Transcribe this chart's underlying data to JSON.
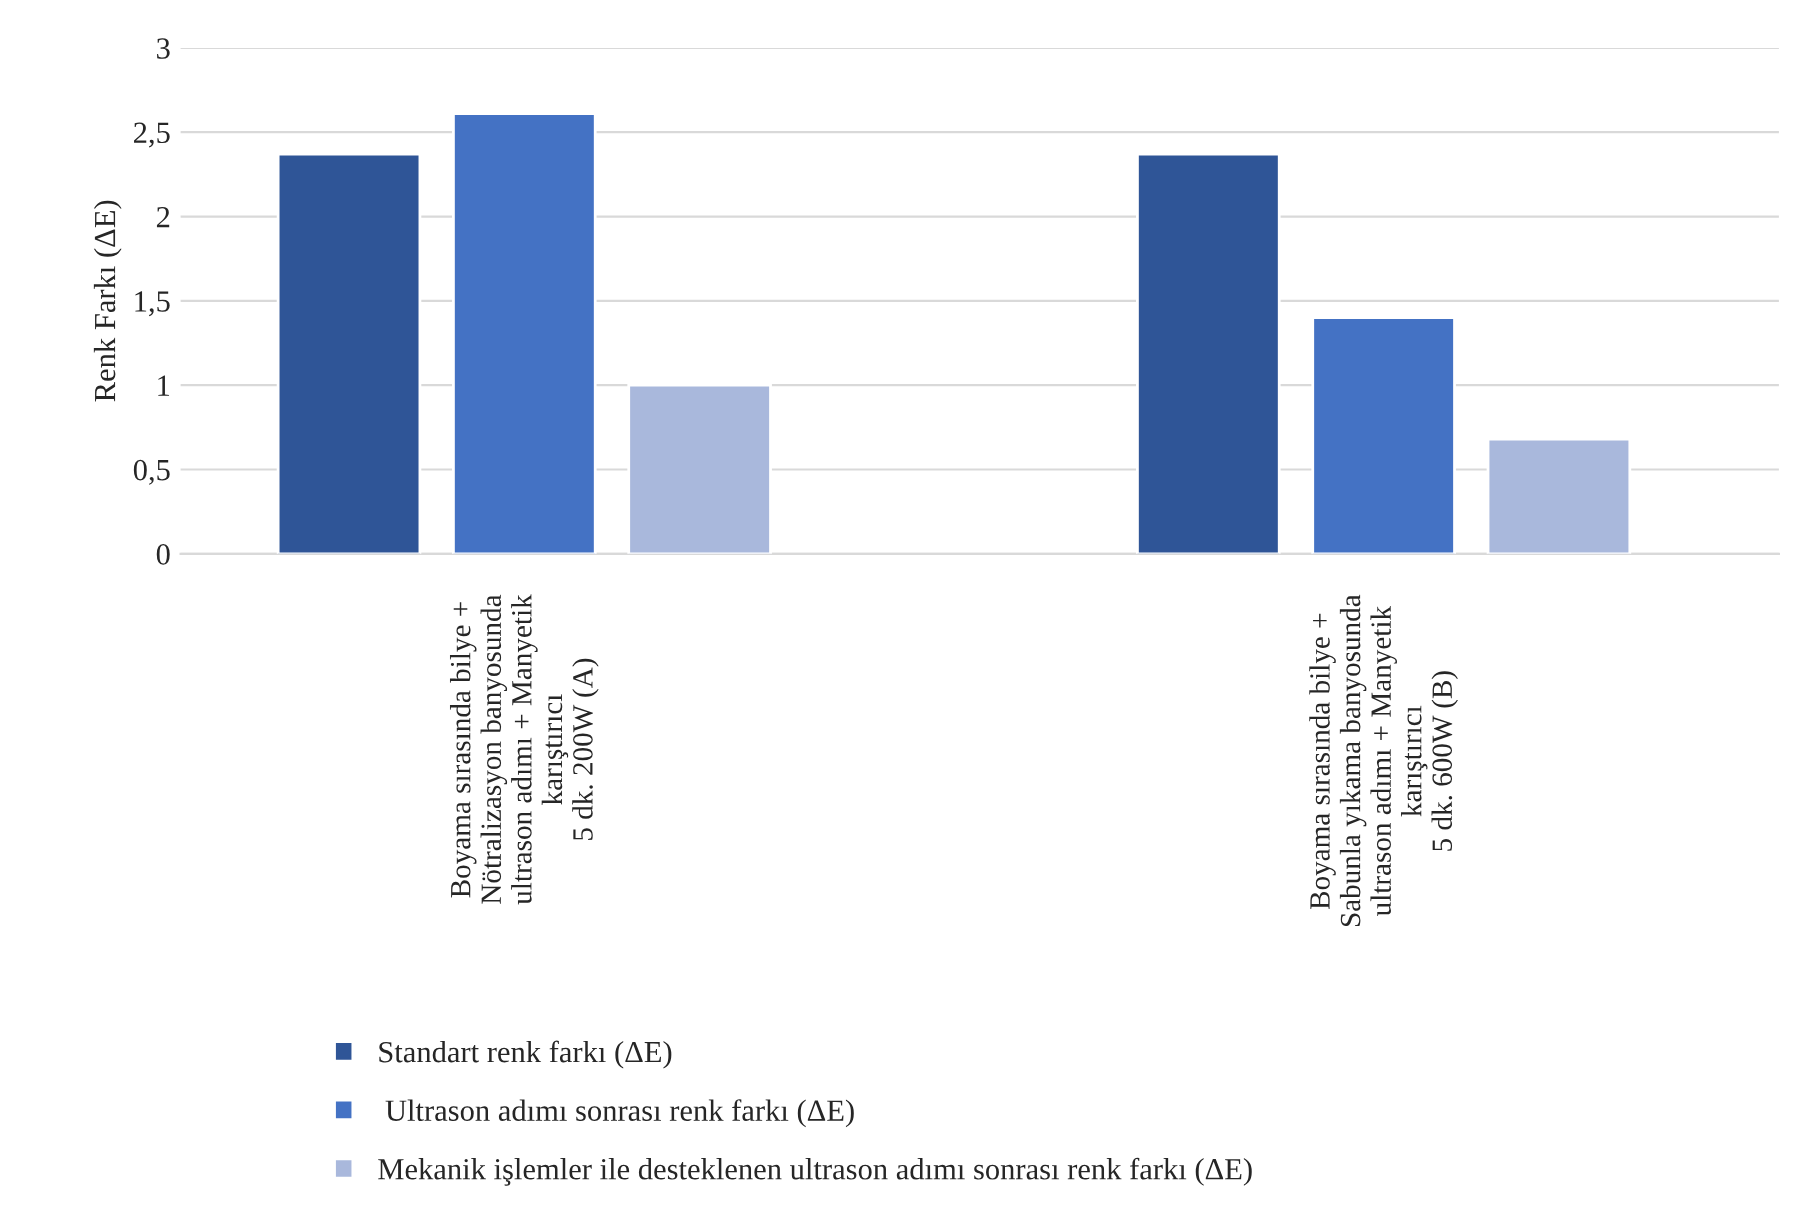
{
  "chart_data": {
    "type": "bar",
    "ylabel": "Renk Farkı (ΔE)",
    "categories": [
      "Boyama sırasında bilye +\nNötralizasyon banyosunda\nultrason adımı + Manyetik\nkarıştırıcı\n5 dk. 200W (A)",
      "Boyama sırasında bilye +\nSabunla yıkama banyosunda\nultrason adımı + Manyetik\nkarıştırıcı\n5 dk. 600W (B)"
    ],
    "series": [
      {
        "name": "Standart renk farkı (ΔE)",
        "color": "#2f5597",
        "values": [
          2.37,
          2.37
        ]
      },
      {
        "name": " Ultrason adımı sonrası renk farkı (ΔE)",
        "color": "#4472c4",
        "values": [
          2.61,
          1.4
        ]
      },
      {
        "name": "Mekanik işlemler ile desteklenen ultrason adımı sonrası renk farkı (ΔE)",
        "color": "#a9b8dc",
        "values": [
          1.0,
          0.68
        ]
      }
    ],
    "ylim": [
      0,
      3
    ],
    "yticks": [
      0,
      {
        "value": 0.5,
        "label": "0,5"
      },
      1,
      {
        "value": 1.5,
        "label": "1,5"
      },
      2,
      {
        "value": 2.5,
        "label": "2,5"
      },
      3
    ],
    "grid": "y",
    "legend": "bottom"
  }
}
